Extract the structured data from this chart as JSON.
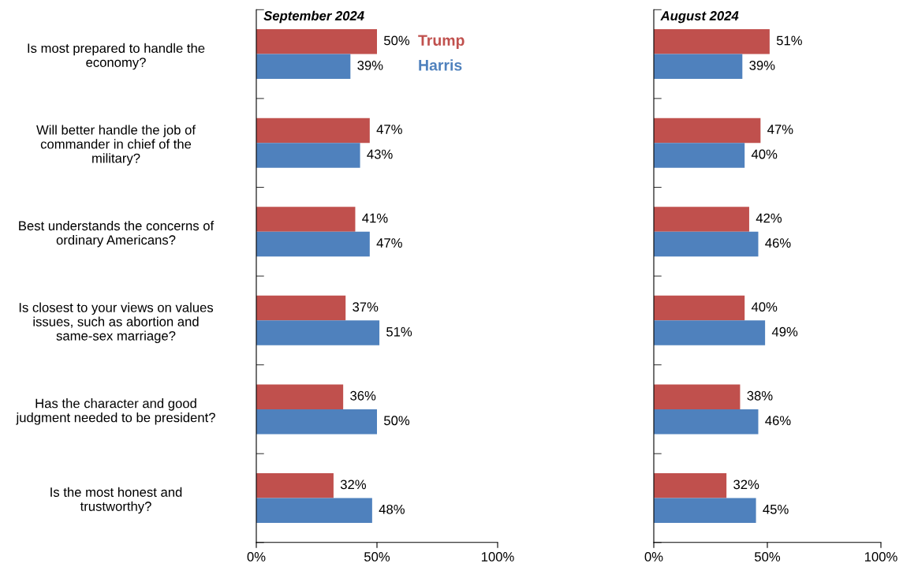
{
  "chart_data": [
    {
      "type": "bar",
      "orientation": "horizontal",
      "title": "September 2024",
      "categories": [
        "Is most prepared to handle the economy?",
        "Will better handle the job of commander in chief of the military?",
        "Best understands the concerns of ordinary Americans?",
        "Is closest to your views on values issues, such as abortion and same-sex marriage?",
        "Has the character and good judgment needed to be president?",
        "Is the most honest and trustworthy?"
      ],
      "series": [
        {
          "name": "Trump",
          "color": "#c0504d",
          "values": [
            50,
            47,
            41,
            37,
            36,
            32
          ],
          "value_labels": [
            "50%",
            "47%",
            "41%",
            "37%",
            "36%",
            "32%"
          ]
        },
        {
          "name": "Harris",
          "color": "#4f81bd",
          "values": [
            39,
            43,
            47,
            51,
            50,
            48
          ],
          "value_labels": [
            "39%",
            "43%",
            "47%",
            "51%",
            "50%",
            "48%"
          ]
        }
      ],
      "xlim": [
        0,
        100
      ],
      "xticks": [
        {
          "value": 0,
          "label": "0%"
        },
        {
          "value": 50,
          "label": "50%"
        },
        {
          "value": 100,
          "label": "100%"
        }
      ],
      "grid": false,
      "legend": false
    },
    {
      "type": "bar",
      "orientation": "horizontal",
      "title": "August 2024",
      "categories": [
        null,
        null,
        null,
        null,
        null,
        null
      ],
      "series": [
        {
          "color": "#c0504d",
          "values": [
            51,
            47,
            42,
            40,
            38,
            32
          ],
          "value_labels": [
            "51%",
            "47%",
            "42%",
            "40%",
            "38%",
            "32%"
          ]
        },
        {
          "color": "#4f81bd",
          "values": [
            39,
            40,
            46,
            49,
            46,
            45
          ],
          "value_labels": [
            "39%",
            "40%",
            "46%",
            "49%",
            "46%",
            "45%"
          ]
        }
      ],
      "xlim": [
        0,
        100
      ],
      "xticks": [
        {
          "value": 0,
          "label": "0%"
        },
        {
          "value": 50,
          "label": "50%"
        },
        {
          "value": 100,
          "label": "100%"
        }
      ],
      "grid": false
    }
  ]
}
